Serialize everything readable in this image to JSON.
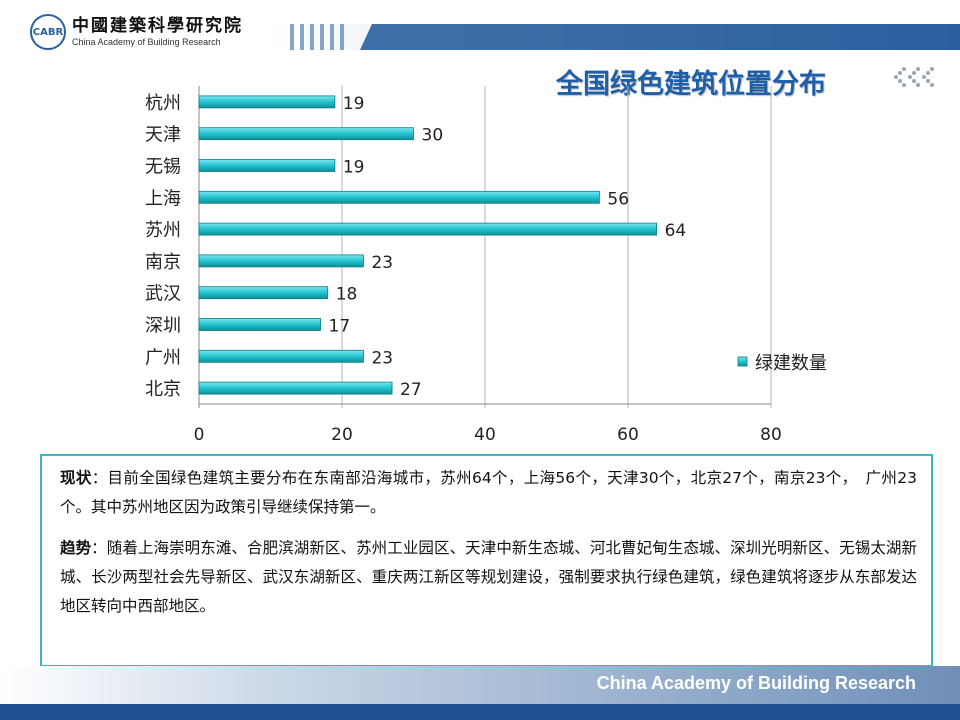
{
  "header": {
    "logo_badge": "CABR",
    "logo_cn": "中國建築科學研究院",
    "logo_en": "China Academy of Building Research"
  },
  "title": "全国绿色建筑位置分布",
  "colors": {
    "accent": "#1f5fa8",
    "bar": "#22c4cf",
    "box_border": "#3cb8b8",
    "band_dark": "#1e4f8f"
  },
  "chart_data": {
    "type": "bar",
    "orientation": "horizontal",
    "categories": [
      "杭州",
      "天津",
      "无锡",
      "上海",
      "苏州",
      "南京",
      "武汉",
      "深圳",
      "广州",
      "北京"
    ],
    "series": [
      {
        "name": "绿建数量",
        "values": [
          19,
          30,
          19,
          56,
          64,
          23,
          18,
          17,
          23,
          27
        ]
      }
    ],
    "xlim": [
      0,
      80
    ],
    "xticks": [
      0,
      20,
      40,
      60,
      80
    ],
    "grid": true,
    "legend_position": "right",
    "data_labels": true
  },
  "text_box": {
    "status_label": "现状",
    "status_text": "：目前全国绿色建筑主要分布在东南部沿海城市，苏州64个，上海56个，天津30个，北京27个，南京23个，　广州23个。其中苏州地区因为政策引导继续保持第一。",
    "trend_label": "趋势",
    "trend_text": "：随着上海崇明东滩、合肥滨湖新区、苏州工业园区、天津中新生态城、河北曹妃甸生态城、深圳光明新区、无锡太湖新城、长沙两型社会先导新区、武汉东湖新区、重庆两江新区等规划建设，强制要求执行绿色建筑，绿色建筑将逐步从东部发达地区转向中西部地区。"
  },
  "footer": {
    "text": "China Academy of Building Research"
  }
}
